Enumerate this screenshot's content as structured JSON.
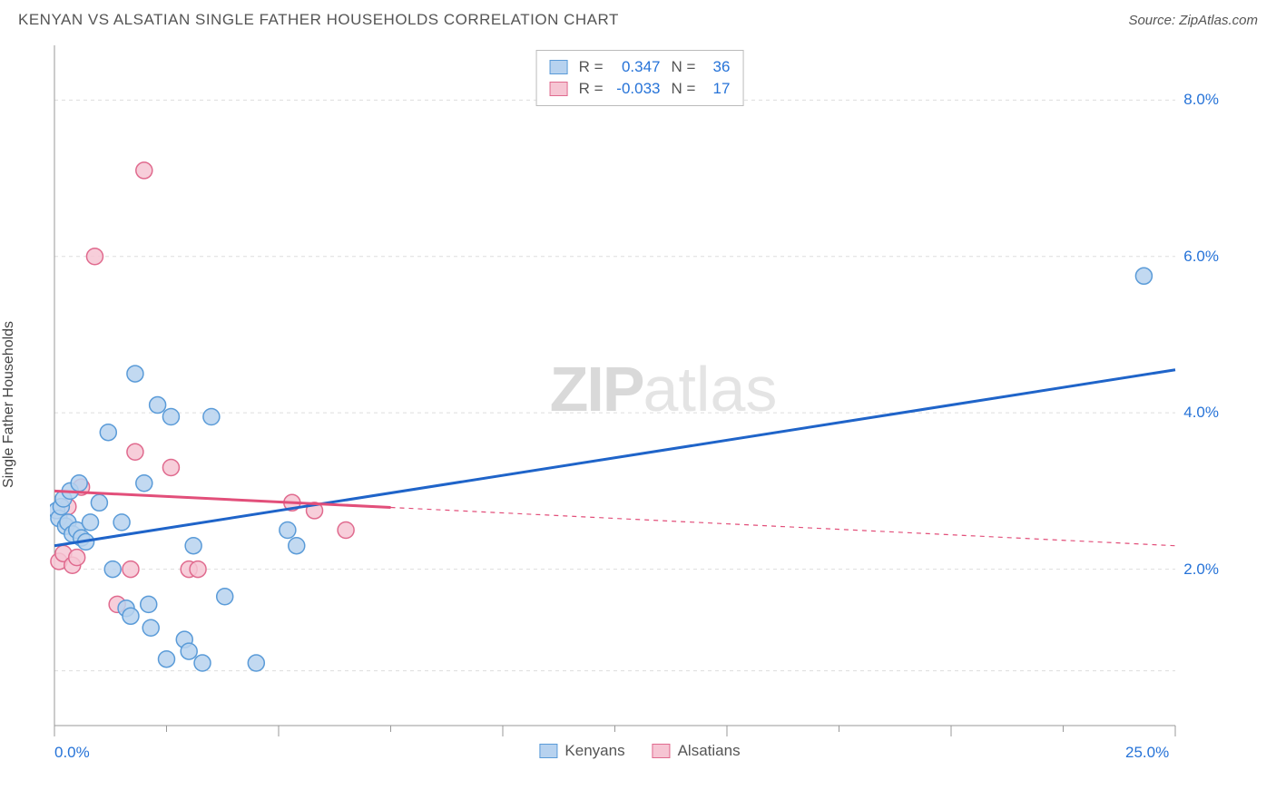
{
  "header": {
    "title": "KENYAN VS ALSATIAN SINGLE FATHER HOUSEHOLDS CORRELATION CHART",
    "source": "Source: ZipAtlas.com"
  },
  "y_axis_label": "Single Father Households",
  "watermark": {
    "part1": "ZIP",
    "part2": "atlas"
  },
  "chart": {
    "type": "scatter",
    "xlim": [
      0,
      25
    ],
    "ylim": [
      0,
      8.7
    ],
    "x_ticks_major": [
      0,
      5,
      10,
      15,
      20,
      25
    ],
    "x_ticks_minor": [
      2.5,
      7.5,
      12.5,
      17.5,
      22.5
    ],
    "y_gridlines": [
      0.7,
      2.0,
      4.0,
      6.0,
      8.0
    ],
    "y_tick_labels": [
      {
        "v": 2.0,
        "label": "2.0%"
      },
      {
        "v": 4.0,
        "label": "4.0%"
      },
      {
        "v": 6.0,
        "label": "6.0%"
      },
      {
        "v": 8.0,
        "label": "8.0%"
      }
    ],
    "x_tick_labels": [
      {
        "v": 0,
        "label": "0.0%",
        "anchor": "start"
      },
      {
        "v": 25,
        "label": "25.0%",
        "anchor": "end"
      }
    ],
    "background_color": "#ffffff",
    "grid_color": "#dddddd",
    "grid_dash": "4,4",
    "axis_color": "#999999",
    "marker_radius": 9,
    "marker_stroke_width": 1.5,
    "trendline_width": 3
  },
  "series": [
    {
      "name": "Kenyans",
      "fill": "#b7d2ef",
      "stroke": "#5a9bd8",
      "line_color": "#1f64c9",
      "R": "0.347",
      "N": "36",
      "trendline": {
        "x1": 0,
        "y1": 2.3,
        "x2": 25,
        "y2": 4.55,
        "solid_until_x": 25
      },
      "points": [
        [
          0.05,
          2.75
        ],
        [
          0.1,
          2.65
        ],
        [
          0.15,
          2.8
        ],
        [
          0.2,
          2.9
        ],
        [
          0.25,
          2.55
        ],
        [
          0.3,
          2.6
        ],
        [
          0.35,
          3.0
        ],
        [
          0.4,
          2.45
        ],
        [
          0.5,
          2.5
        ],
        [
          0.55,
          3.1
        ],
        [
          0.6,
          2.4
        ],
        [
          0.7,
          2.35
        ],
        [
          0.8,
          2.6
        ],
        [
          1.0,
          2.85
        ],
        [
          1.2,
          3.75
        ],
        [
          1.3,
          2.0
        ],
        [
          1.5,
          2.6
        ],
        [
          1.6,
          1.5
        ],
        [
          1.7,
          1.4
        ],
        [
          1.8,
          4.5
        ],
        [
          2.0,
          3.1
        ],
        [
          2.1,
          1.55
        ],
        [
          2.15,
          1.25
        ],
        [
          2.3,
          4.1
        ],
        [
          2.5,
          0.85
        ],
        [
          2.6,
          3.95
        ],
        [
          2.9,
          1.1
        ],
        [
          3.0,
          0.95
        ],
        [
          3.1,
          2.3
        ],
        [
          3.3,
          0.8
        ],
        [
          3.5,
          3.95
        ],
        [
          3.8,
          1.65
        ],
        [
          4.5,
          0.8
        ],
        [
          5.2,
          2.5
        ],
        [
          5.4,
          2.3
        ],
        [
          24.3,
          5.75
        ]
      ]
    },
    {
      "name": "Alsatians",
      "fill": "#f6c5d3",
      "stroke": "#e06a8e",
      "line_color": "#e24f7a",
      "R": "-0.033",
      "N": "17",
      "trendline": {
        "x1": 0,
        "y1": 3.0,
        "x2": 25,
        "y2": 2.3,
        "solid_until_x": 7.5
      },
      "points": [
        [
          0.1,
          2.1
        ],
        [
          0.2,
          2.2
        ],
        [
          0.3,
          2.8
        ],
        [
          0.4,
          2.05
        ],
        [
          0.5,
          2.15
        ],
        [
          0.6,
          3.05
        ],
        [
          0.9,
          6.0
        ],
        [
          1.4,
          1.55
        ],
        [
          1.7,
          2.0
        ],
        [
          1.8,
          3.5
        ],
        [
          2.0,
          7.1
        ],
        [
          2.6,
          3.3
        ],
        [
          3.0,
          2.0
        ],
        [
          3.2,
          2.0
        ],
        [
          5.3,
          2.85
        ],
        [
          5.8,
          2.75
        ],
        [
          6.5,
          2.5
        ]
      ]
    }
  ],
  "stats_legend": {
    "r_label": "R =",
    "n_label": "N ="
  },
  "bottom_legend": {
    "items": [
      "Kenyans",
      "Alsatians"
    ]
  }
}
